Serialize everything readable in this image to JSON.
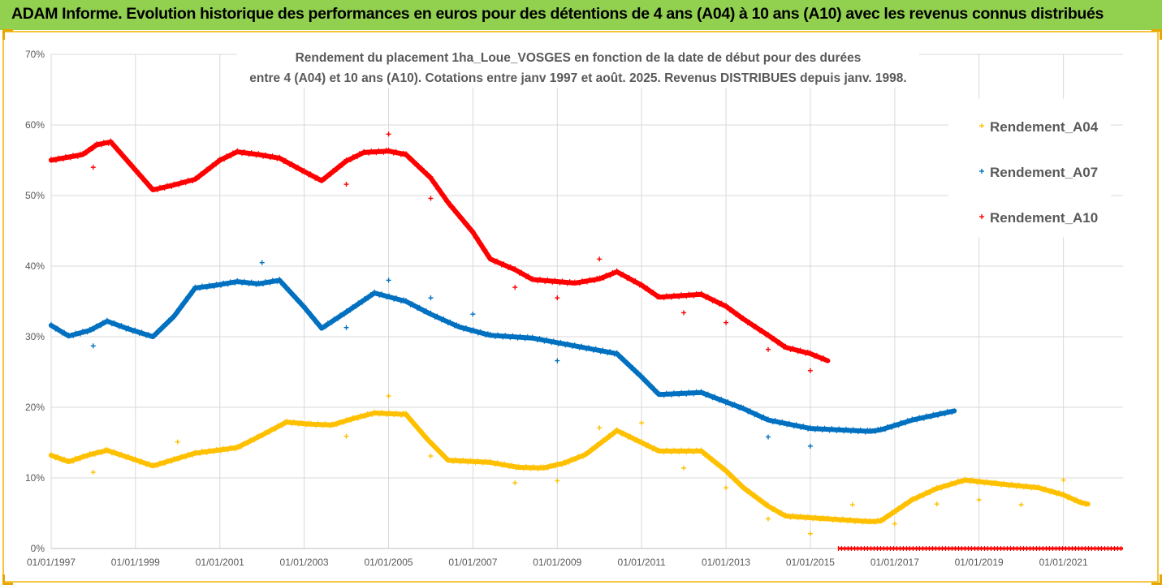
{
  "banner": {
    "text": "ADAM Informe. Evolution historique des performances en euros pour des détentions de 4 ans (A04) à 10 ans (A10) avec les revenus connus distribués"
  },
  "colors": {
    "banner_bg": "#92d050",
    "frame": "#f5c542",
    "grid": "#d9d9d9",
    "A04": "#ffc000",
    "A07": "#0070c0",
    "A10": "#ff0000"
  },
  "chart_data": {
    "type": "scatter",
    "title": [
      "Rendement du placement 1ha_Loue_VOSGES en fonction de la date de début pour des durées",
      "entre 4 (A04) et 10 ans (A10). Cotations entre janv 1997 et août. 2025. Revenus DISTRIBUES depuis janv. 1998."
    ],
    "xlabel": "",
    "ylabel": "",
    "x_range": [
      "1997-01-01",
      "2022-06-01"
    ],
    "x_ticks": [
      "01/01/1997",
      "01/01/1999",
      "01/01/2001",
      "01/01/2003",
      "01/01/2005",
      "01/01/2007",
      "01/01/2009",
      "01/01/2011",
      "01/01/2013",
      "01/01/2015",
      "01/01/2017",
      "01/01/2019",
      "01/01/2021"
    ],
    "ylim": [
      0,
      70
    ],
    "y_ticks": [
      "0%",
      "10%",
      "20%",
      "30%",
      "40%",
      "50%",
      "60%",
      "70%"
    ],
    "grid": true,
    "legend_position": "right",
    "series": [
      {
        "name": "Rendement_A04",
        "color_key": "A04",
        "points": [
          [
            "1997-01-01",
            13.2
          ],
          [
            "1997-06-01",
            12.3
          ],
          [
            "1997-12-01",
            13.3
          ],
          [
            "1998-05-01",
            13.9
          ],
          [
            "1998-11-01",
            12.9
          ],
          [
            "1999-06-01",
            11.7
          ],
          [
            "1999-12-01",
            12.6
          ],
          [
            "2000-06-01",
            13.5
          ],
          [
            "2000-12-01",
            13.9
          ],
          [
            "2001-06-01",
            14.3
          ],
          [
            "2001-12-01",
            15.8
          ],
          [
            "2002-08-01",
            17.9
          ],
          [
            "2003-03-01",
            17.6
          ],
          [
            "2003-09-01",
            17.5
          ],
          [
            "2004-03-01",
            18.4
          ],
          [
            "2004-09-01",
            19.2
          ],
          [
            "2005-06-01",
            19.0
          ],
          [
            "2005-12-01",
            15.5
          ],
          [
            "2006-06-01",
            12.5
          ],
          [
            "2007-06-01",
            12.2
          ],
          [
            "2008-02-01",
            11.5
          ],
          [
            "2008-09-01",
            11.4
          ],
          [
            "2009-03-01",
            12.1
          ],
          [
            "2009-09-01",
            13.3
          ],
          [
            "2010-06-01",
            16.7
          ],
          [
            "2011-01-01",
            15.0
          ],
          [
            "2011-06-01",
            13.8
          ],
          [
            "2012-06-01",
            13.8
          ],
          [
            "2013-01-01",
            11.0
          ],
          [
            "2013-06-01",
            8.6
          ],
          [
            "2014-01-01",
            6.0
          ],
          [
            "2014-06-01",
            4.6
          ],
          [
            "2015-06-01",
            4.2
          ],
          [
            "2016-06-01",
            3.8
          ],
          [
            "2016-09-01",
            3.9
          ],
          [
            "2017-06-01",
            6.9
          ],
          [
            "2018-01-01",
            8.5
          ],
          [
            "2018-09-01",
            9.7
          ],
          [
            "2019-06-01",
            9.2
          ],
          [
            "2020-06-01",
            8.6
          ],
          [
            "2021-01-01",
            7.6
          ],
          [
            "2021-06-01",
            6.5
          ],
          [
            "2021-08-01",
            6.3
          ]
        ],
        "outliers": [
          [
            "1997-12-31",
            10.8
          ],
          [
            "2000-01-01",
            15.1
          ],
          [
            "2004-01-01",
            15.9
          ],
          [
            "2005-01-01",
            21.6
          ],
          [
            "2006-01-01",
            13.1
          ],
          [
            "2008-01-01",
            9.3
          ],
          [
            "2009-01-01",
            9.6
          ],
          [
            "2010-01-01",
            17.1
          ],
          [
            "2011-01-01",
            17.8
          ],
          [
            "2012-01-01",
            11.4
          ],
          [
            "2013-01-01",
            8.6
          ],
          [
            "2014-01-01",
            4.2
          ],
          [
            "2015-01-01",
            2.1
          ],
          [
            "2016-01-01",
            6.2
          ],
          [
            "2017-01-01",
            3.5
          ],
          [
            "2018-01-01",
            6.3
          ],
          [
            "2019-01-01",
            6.9
          ],
          [
            "2020-01-01",
            6.2
          ],
          [
            "2021-01-01",
            9.7
          ]
        ]
      },
      {
        "name": "Rendement_A07",
        "color_key": "A07",
        "points": [
          [
            "1997-01-01",
            31.6
          ],
          [
            "1997-06-01",
            30.1
          ],
          [
            "1997-12-01",
            30.9
          ],
          [
            "1998-05-01",
            32.2
          ],
          [
            "1998-11-01",
            31.1
          ],
          [
            "1999-06-01",
            30.0
          ],
          [
            "1999-12-01",
            32.9
          ],
          [
            "2000-06-01",
            36.9
          ],
          [
            "2000-12-01",
            37.3
          ],
          [
            "2001-06-01",
            37.8
          ],
          [
            "2001-12-01",
            37.5
          ],
          [
            "2002-06-01",
            38.0
          ],
          [
            "2003-01-01",
            34.2
          ],
          [
            "2003-06-01",
            31.2
          ],
          [
            "2004-01-01",
            33.5
          ],
          [
            "2004-09-01",
            36.2
          ],
          [
            "2005-06-01",
            35.0
          ],
          [
            "2006-01-01",
            33.2
          ],
          [
            "2006-09-01",
            31.4
          ],
          [
            "2007-06-01",
            30.2
          ],
          [
            "2008-06-01",
            29.8
          ],
          [
            "2009-06-01",
            28.7
          ],
          [
            "2010-06-01",
            27.6
          ],
          [
            "2011-01-01",
            24.3
          ],
          [
            "2011-06-01",
            21.8
          ],
          [
            "2012-06-01",
            22.1
          ],
          [
            "2013-06-01",
            19.8
          ],
          [
            "2014-01-01",
            18.2
          ],
          [
            "2015-01-01",
            17.0
          ],
          [
            "2016-06-01",
            16.6
          ],
          [
            "2016-09-01",
            16.8
          ],
          [
            "2017-06-01",
            18.2
          ],
          [
            "2018-06-01",
            19.5
          ]
        ],
        "outliers": [
          [
            "1997-12-31",
            28.7
          ],
          [
            "2002-01-01",
            40.5
          ],
          [
            "2004-01-01",
            31.3
          ],
          [
            "2005-01-01",
            38.0
          ],
          [
            "2006-01-01",
            35.5
          ],
          [
            "2007-01-01",
            33.2
          ],
          [
            "2009-01-01",
            26.6
          ],
          [
            "2014-01-01",
            15.8
          ],
          [
            "2015-01-01",
            14.5
          ]
        ]
      },
      {
        "name": "Rendement_A10",
        "color_key": "A10",
        "points": [
          [
            "1997-01-01",
            55.0
          ],
          [
            "1997-10-01",
            55.8
          ],
          [
            "1998-02-01",
            57.2
          ],
          [
            "1998-06-01",
            57.6
          ],
          [
            "1998-12-01",
            54.2
          ],
          [
            "1999-06-01",
            50.8
          ],
          [
            "1999-12-01",
            51.5
          ],
          [
            "2000-06-01",
            52.3
          ],
          [
            "2001-01-01",
            55.0
          ],
          [
            "2001-06-01",
            56.2
          ],
          [
            "2001-12-01",
            55.8
          ],
          [
            "2002-06-01",
            55.3
          ],
          [
            "2003-01-01",
            53.4
          ],
          [
            "2003-06-01",
            52.1
          ],
          [
            "2004-01-01",
            54.9
          ],
          [
            "2004-06-01",
            56.1
          ],
          [
            "2005-01-01",
            56.3
          ],
          [
            "2005-06-01",
            55.8
          ],
          [
            "2006-01-01",
            52.5
          ],
          [
            "2006-06-01",
            49.0
          ],
          [
            "2007-01-01",
            44.8
          ],
          [
            "2007-06-01",
            41.0
          ],
          [
            "2008-01-01",
            39.5
          ],
          [
            "2008-06-01",
            38.1
          ],
          [
            "2009-06-01",
            37.6
          ],
          [
            "2010-01-01",
            38.2
          ],
          [
            "2010-06-01",
            39.2
          ],
          [
            "2011-01-01",
            37.3
          ],
          [
            "2011-06-01",
            35.6
          ],
          [
            "2012-06-01",
            36.0
          ],
          [
            "2013-01-01",
            34.3
          ],
          [
            "2013-06-01",
            32.5
          ],
          [
            "2014-01-01",
            30.2
          ],
          [
            "2014-06-01",
            28.5
          ],
          [
            "2015-01-01",
            27.6
          ],
          [
            "2015-06-01",
            26.6
          ]
        ],
        "outliers": [
          [
            "1997-12-31",
            54.0
          ],
          [
            "2004-01-01",
            51.6
          ],
          [
            "2005-01-01",
            58.7
          ],
          [
            "2006-01-01",
            49.6
          ],
          [
            "2008-01-01",
            37.0
          ],
          [
            "2009-01-01",
            35.5
          ],
          [
            "2010-01-01",
            41.0
          ],
          [
            "2012-01-01",
            33.4
          ],
          [
            "2013-01-01",
            32.0
          ],
          [
            "2014-01-01",
            28.2
          ],
          [
            "2015-01-01",
            25.2
          ]
        ],
        "zero_range": [
          "2015-09-01",
          "2022-06-01"
        ]
      }
    ]
  }
}
